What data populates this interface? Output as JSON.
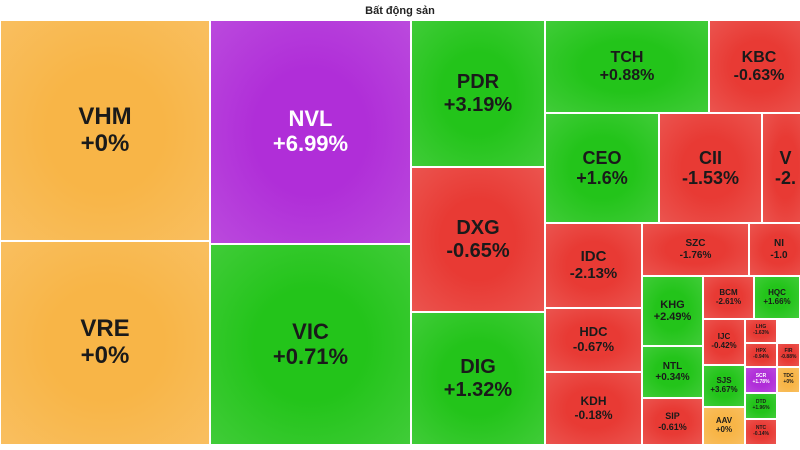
{
  "title": "Bất động sản",
  "colors": {
    "up": "#23c41a",
    "down": "#e83a34",
    "flat": "#f8b547",
    "ceiling": "#b02ed8",
    "floor": "#3dc3e8"
  },
  "chart_data": {
    "type": "treemap",
    "title": "Bất động sản",
    "items": [
      {
        "ticker": "VHM",
        "change": "+0%",
        "value": 0,
        "status": "flat"
      },
      {
        "ticker": "VRE",
        "change": "+0%",
        "value": 0,
        "status": "flat"
      },
      {
        "ticker": "NVL",
        "change": "+6.99%",
        "value": 6.99,
        "status": "ceiling"
      },
      {
        "ticker": "VIC",
        "change": "+0.71%",
        "value": 0.71,
        "status": "up"
      },
      {
        "ticker": "PDR",
        "change": "+3.19%",
        "value": 3.19,
        "status": "up"
      },
      {
        "ticker": "DXG",
        "change": "-0.65%",
        "value": -0.65,
        "status": "down"
      },
      {
        "ticker": "DIG",
        "change": "+1.32%",
        "value": 1.32,
        "status": "up"
      },
      {
        "ticker": "TCH",
        "change": "+0.88%",
        "value": 0.88,
        "status": "up"
      },
      {
        "ticker": "KBC",
        "change": "-0.63%",
        "value": -0.63,
        "status": "down"
      },
      {
        "ticker": "CEO",
        "change": "+1.6%",
        "value": 1.6,
        "status": "up"
      },
      {
        "ticker": "CII",
        "change": "-1.53%",
        "value": -1.53,
        "status": "down"
      },
      {
        "ticker": "V",
        "change": "-2.",
        "value": null,
        "status": "down"
      },
      {
        "ticker": "IDC",
        "change": "-2.13%",
        "value": -2.13,
        "status": "down"
      },
      {
        "ticker": "SZC",
        "change": "-1.76%",
        "value": -1.76,
        "status": "down"
      },
      {
        "ticker": "NI",
        "change": "-1.0",
        "value": null,
        "status": "down"
      },
      {
        "ticker": "HDC",
        "change": "-0.67%",
        "value": -0.67,
        "status": "down"
      },
      {
        "ticker": "KDH",
        "change": "-0.18%",
        "value": -0.18,
        "status": "down"
      },
      {
        "ticker": "KHG",
        "change": "+2.49%",
        "value": 2.49,
        "status": "up"
      },
      {
        "ticker": "BCM",
        "change": "-2.61%",
        "value": -2.61,
        "status": "down"
      },
      {
        "ticker": "HQC",
        "change": "+1.66%",
        "value": 1.66,
        "status": "up"
      },
      {
        "ticker": "NTL",
        "change": "+0.34%",
        "value": 0.34,
        "status": "up"
      },
      {
        "ticker": "IJC",
        "change": "-0.42%",
        "value": -0.42,
        "status": "down"
      },
      {
        "ticker": "LHG",
        "change": "-1.63%",
        "value": -1.63,
        "status": "down"
      },
      {
        "ticker": "SJS",
        "change": "+3.67%",
        "value": 3.67,
        "status": "up"
      },
      {
        "ticker": "HPX",
        "change": "-0.94%",
        "value": -0.94,
        "status": "down"
      },
      {
        "ticker": "FIR",
        "change": "-0.88%",
        "value": -0.88,
        "status": "down"
      },
      {
        "ticker": "SCR",
        "change": "+1.78%",
        "value": 1.78,
        "status": "ceiling"
      },
      {
        "ticker": "TDC",
        "change": "+0%",
        "value": 0,
        "status": "flat"
      },
      {
        "ticker": "SIP",
        "change": "-0.61%",
        "value": -0.61,
        "status": "down"
      },
      {
        "ticker": "AAV",
        "change": "+0%",
        "value": 0,
        "status": "flat"
      },
      {
        "ticker": "DTD",
        "change": "+1.96%",
        "value": 1.96,
        "status": "up"
      },
      {
        "ticker": "NTC",
        "change": "-0.14%",
        "value": -0.14,
        "status": "down"
      }
    ]
  }
}
